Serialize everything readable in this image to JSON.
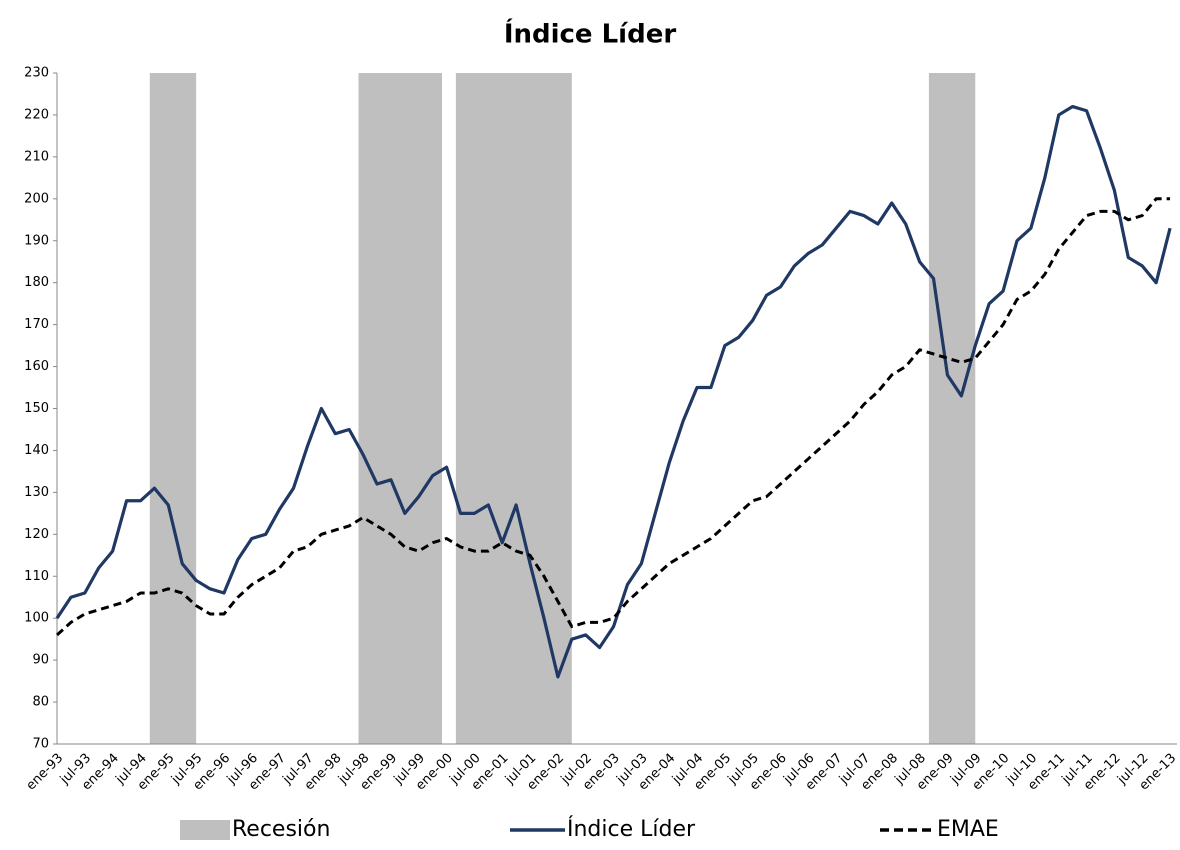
{
  "chart_data": {
    "type": "line",
    "title": "Índice Líder",
    "categories": [
      "ene-93",
      null,
      "jul-93",
      null,
      "ene-94",
      null,
      "jul-94",
      null,
      "ene-95",
      null,
      "jul-95",
      null,
      "ene-96",
      null,
      "jul-96",
      null,
      "ene-97",
      null,
      "jul-97",
      null,
      "ene-98",
      null,
      "jul-98",
      null,
      "ene-99",
      null,
      "jul-99",
      null,
      "ene-00",
      null,
      "jul-00",
      null,
      "ene-01",
      null,
      "jul-01",
      null,
      "ene-02",
      null,
      "jul-02",
      null,
      "ene-03",
      null,
      "jul-03",
      null,
      "ene-04",
      null,
      "jul-04",
      null,
      "ene-05",
      null,
      "jul-05",
      null,
      "ene-06",
      null,
      "jul-06",
      null,
      "ene-07",
      null,
      "jul-07",
      null,
      "ene-08",
      null,
      "jul-08",
      null,
      "ene-09",
      null,
      "jul-09",
      null,
      "ene-10",
      null,
      "jul-10",
      null,
      "ene-11",
      null,
      "jul-11",
      null,
      "ene-12",
      null,
      "jul-12",
      null,
      "ene-13"
    ],
    "recession": {
      "name": "Recesión",
      "color": "#bfbfbf",
      "periods": [
        [
          6.67,
          10
        ],
        [
          21.67,
          27.67
        ],
        [
          28.67,
          37
        ],
        [
          62.67,
          66
        ]
      ]
    },
    "series": [
      {
        "name": "Índice Líder",
        "color": "#1f3864",
        "dashed": false,
        "values": [
          100,
          105,
          106,
          112,
          116,
          128,
          128,
          131,
          127,
          113,
          109,
          107,
          106,
          114,
          119,
          120,
          126,
          131,
          141,
          150,
          144,
          145,
          139,
          132,
          133,
          125,
          129,
          134,
          136,
          125,
          125,
          127,
          118,
          127,
          113,
          100,
          86,
          95,
          96,
          93,
          98,
          108,
          113,
          125,
          137,
          147,
          155,
          155,
          165,
          167,
          171,
          177,
          179,
          184,
          187,
          189,
          193,
          197,
          196,
          194,
          199,
          194,
          185,
          181,
          158,
          153,
          165,
          175,
          178,
          190,
          193,
          205,
          220,
          222,
          221,
          212,
          202,
          186,
          184,
          180,
          193
        ]
      },
      {
        "name": "EMAE",
        "color": "#000000",
        "dashed": true,
        "values": [
          96,
          99,
          101,
          102,
          103,
          104,
          106,
          106,
          107,
          106,
          103,
          101,
          101,
          105,
          108,
          110,
          112,
          116,
          117,
          120,
          121,
          122,
          124,
          122,
          120,
          117,
          116,
          118,
          119,
          117,
          116,
          116,
          118,
          116,
          115,
          110,
          104,
          98,
          99,
          99,
          100,
          104,
          107,
          110,
          113,
          115,
          117,
          119,
          122,
          125,
          128,
          129,
          132,
          135,
          138,
          141,
          144,
          147,
          151,
          154,
          158,
          160,
          164,
          163,
          162,
          161,
          162,
          166,
          170,
          176,
          178,
          182,
          188,
          192,
          196,
          197,
          197,
          195,
          196,
          200,
          200
        ]
      }
    ],
    "ylim": [
      70,
      230
    ],
    "yticks": [
      70,
      80,
      90,
      100,
      110,
      120,
      130,
      140,
      150,
      160,
      170,
      180,
      190,
      200,
      210,
      220,
      230
    ],
    "grid": false
  }
}
